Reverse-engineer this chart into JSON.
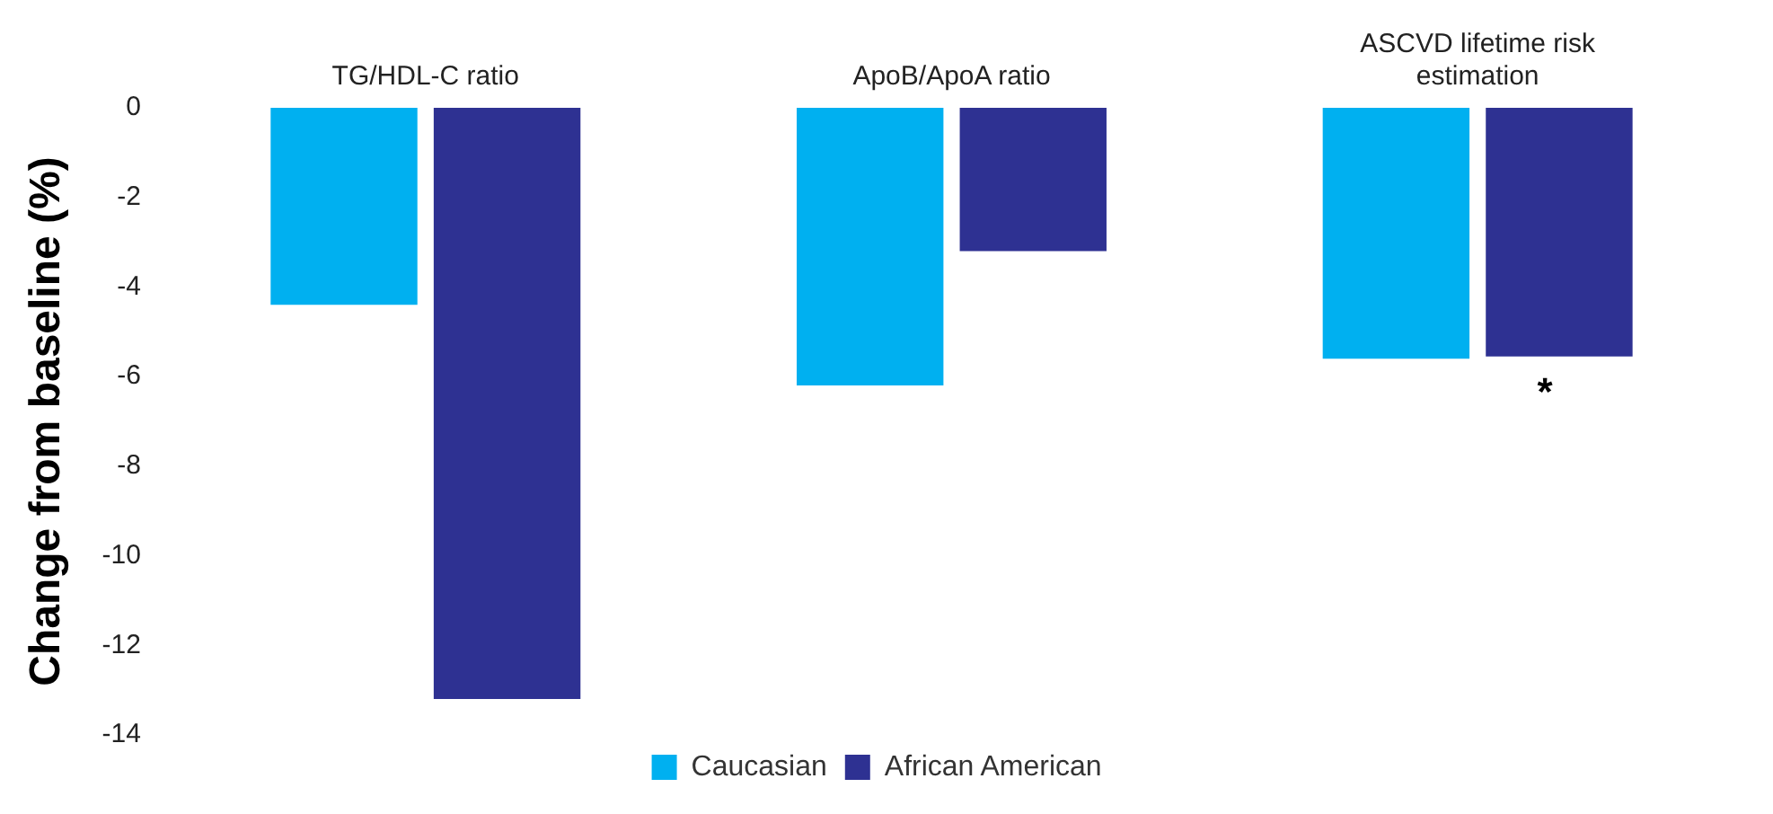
{
  "chart_data": {
    "type": "bar",
    "ylabel": "Change from baseline (%)",
    "categories": [
      "TG/HDL-C ratio",
      "ApoB/ApoA ratio",
      "ASCVD lifetime risk estimation"
    ],
    "series": [
      {
        "name": "Caucasian",
        "color": "#00b0f0",
        "values": [
          -4.4,
          -6.2,
          -5.6
        ]
      },
      {
        "name": "African American",
        "color": "#2e3192",
        "values": [
          -13.2,
          -3.2,
          -5.55
        ]
      }
    ],
    "ylim": [
      -14,
      0
    ],
    "yticks": [
      -14,
      -12,
      -10,
      -8,
      -6,
      -4,
      -2,
      0
    ],
    "grid": false,
    "legend": "bottom",
    "annotations": [
      {
        "text": "*",
        "x": "ASCVD lifetime risk estimation",
        "y": -5.55
      }
    ]
  }
}
